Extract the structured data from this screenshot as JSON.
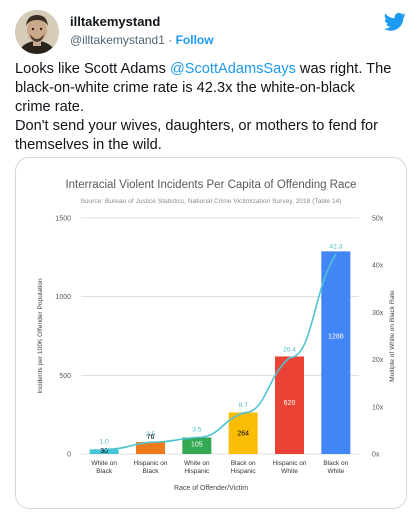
{
  "tweet": {
    "display_name": "illtakemystand",
    "handle": "@illtakemystand1",
    "separator": "·",
    "follow_label": "Follow",
    "text_parts": {
      "l1_pre": "Looks like Scott Adams ",
      "l1_mention": "@ScottAdamsSays",
      "l1_post": " was right. The",
      "l2": "black-on-white crime rate is 42.3x the white-on-black",
      "l3": "crime rate.",
      "l4": "Don't send your wives, daughters, or mothers to fend for",
      "l5": "themselves in the wild."
    },
    "icons": {
      "brand": "twitter-bird-icon",
      "brand_color": "#1d9bf0",
      "avatar": "avatar-portrait"
    }
  },
  "chart_data": {
    "type": "bar",
    "title": "Interracial Violent Incidents Per Capita of Offending Race",
    "subtitle": "Source: Bureau of Justice Statistics, National Crime Victimization Survey, 2018 (Table 14)",
    "xlabel": "Race of Offender/Victim",
    "ylabel": "Incidents per 100K Offender Population",
    "y2label": "Multiple of White on Black Rate",
    "ylim": [
      0,
      1500
    ],
    "y2lim": [
      0,
      50
    ],
    "yticks": [
      "0",
      "500",
      "1000",
      "1500"
    ],
    "y2ticks": [
      "0x",
      "10x",
      "20x",
      "30x",
      "40x",
      "50x"
    ],
    "categories": [
      [
        "White on",
        "Black"
      ],
      [
        "Hispanic on",
        "Black"
      ],
      [
        "White on",
        "Hispanic"
      ],
      [
        "Black on",
        "Hispanic"
      ],
      [
        "Hispanic on",
        "White"
      ],
      [
        "Black on",
        "White"
      ]
    ],
    "values": [
      30,
      76,
      105,
      264,
      620,
      1288
    ],
    "value_labels": [
      "30",
      "76",
      "105",
      "264",
      "620",
      "1288"
    ],
    "multiples": [
      1.0,
      2.5,
      3.5,
      8.7,
      20.4,
      42.3
    ],
    "multiple_labels": [
      "1.0",
      "2.5",
      "3.5",
      "8.7",
      "20.4",
      "42.3"
    ],
    "colors": [
      "#48c5d6",
      "#ef7a1b",
      "#34a853",
      "#fbbc04",
      "#ea4335",
      "#4285f4"
    ],
    "line_color": "#4fc3d3",
    "grid": true
  }
}
